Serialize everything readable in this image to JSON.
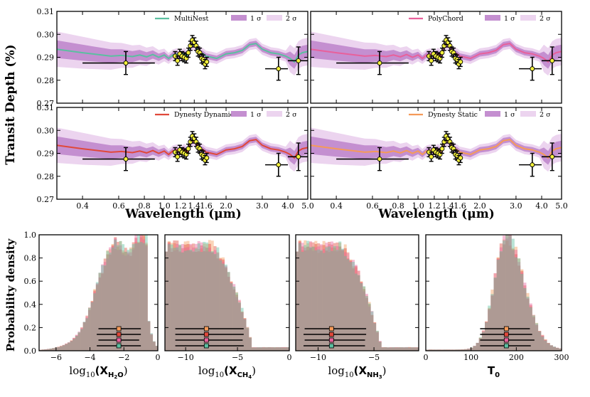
{
  "ylabel_top": "Transit Depth (%)",
  "xlabel_top": "Wavelength (μm)",
  "ylabel_bottom": "Probability density",
  "legend_sigma1": "1 σ",
  "legend_sigma2": "2 σ",
  "colors": {
    "multinest": "#5bbfa0",
    "polychord": "#e8609b",
    "dynesty_dynamic": "#e0483a",
    "dynesty_static": "#f59a58",
    "band1": "#c48fd0",
    "band2": "#ecd4ef",
    "data_fill": "#f3f03a",
    "hist_overlap": "#b49a8c"
  },
  "chart_data": [
    {
      "type": "line",
      "panel": "top-left",
      "sampler": "MultiNest",
      "color_key": "multinest",
      "xscale": "log",
      "xlim": [
        0.3,
        5.0
      ],
      "ylim": [
        0.27,
        0.31
      ],
      "xticks": [
        0.4,
        0.6,
        0.8,
        1.0,
        1.2,
        1.4,
        1.6,
        2.0,
        3.0,
        4.0,
        5.0
      ],
      "xtick_labels": [
        "0.4",
        "0.6",
        "0.8",
        "1.0",
        "1.2",
        "1.4",
        "1.6",
        "2.0",
        "3.0",
        "4.0",
        "5.0"
      ],
      "yticks": [
        0.27,
        0.28,
        0.29,
        0.3,
        0.31
      ],
      "ytick_labels": [
        "0.27",
        "0.28",
        "0.29",
        "0.30",
        "0.31"
      ],
      "legend": [
        "MultiNest",
        "1 σ",
        "2 σ"
      ],
      "show_xticklabels": false,
      "show_yticklabels": true
    },
    {
      "type": "line",
      "panel": "top-right",
      "sampler": "PolyChord",
      "color_key": "polychord",
      "xscale": "log",
      "xlim": [
        0.3,
        5.0
      ],
      "ylim": [
        0.27,
        0.31
      ],
      "xticks": [
        0.4,
        0.6,
        0.8,
        1.0,
        1.2,
        1.4,
        1.6,
        2.0,
        3.0,
        4.0,
        5.0
      ],
      "xtick_labels": [
        "0.4",
        "0.6",
        "0.8",
        "1.0",
        "1.2",
        "1.4",
        "1.6",
        "2.0",
        "3.0",
        "4.0",
        "5.0"
      ],
      "legend": [
        "PolyChord",
        "1 σ",
        "2 σ"
      ],
      "show_xticklabels": false,
      "show_yticklabels": false
    },
    {
      "type": "line",
      "panel": "mid-left",
      "sampler": "Dynesty Dynamic",
      "color_key": "dynesty_dynamic",
      "xscale": "log",
      "xlim": [
        0.3,
        5.0
      ],
      "ylim": [
        0.27,
        0.31
      ],
      "xticks": [
        0.4,
        0.6,
        0.8,
        1.0,
        1.2,
        1.4,
        1.6,
        2.0,
        3.0,
        4.0,
        5.0
      ],
      "xtick_labels": [
        "0.4",
        "0.6",
        "0.8",
        "1.0",
        "1.2",
        "1.4",
        "1.6",
        "2.0",
        "3.0",
        "4.0",
        "5.0"
      ],
      "yticks": [
        0.27,
        0.28,
        0.29,
        0.3,
        0.31
      ],
      "ytick_labels": [
        "0.27",
        "0.28",
        "0.29",
        "0.30",
        "0.31"
      ],
      "legend": [
        "Dynesty Dynamic",
        "1 σ",
        "2 σ"
      ],
      "show_xticklabels": true,
      "show_yticklabels": true
    },
    {
      "type": "line",
      "panel": "mid-right",
      "sampler": "Dynesty Static",
      "color_key": "dynesty_static",
      "xscale": "log",
      "xlim": [
        0.3,
        5.0
      ],
      "ylim": [
        0.27,
        0.31
      ],
      "xticks": [
        0.4,
        0.6,
        0.8,
        1.0,
        1.2,
        1.4,
        1.6,
        2.0,
        3.0,
        4.0,
        5.0
      ],
      "xtick_labels": [
        "0.4",
        "0.6",
        "0.8",
        "1.0",
        "1.2",
        "1.4",
        "1.6",
        "2.0",
        "3.0",
        "4.0",
        "5.0"
      ],
      "legend": [
        "Dynesty Static",
        "1 σ",
        "2 σ"
      ],
      "show_xticklabels": true,
      "show_yticklabels": false
    },
    {
      "type": "bar",
      "panel": "hist-1",
      "xlabel": "log10(X_H2O)",
      "xlabel_base": "log",
      "xlabel_sub": "10",
      "xlabel_var": "(X",
      "xlabel_sub2": "H",
      "xlabel_sub2b": "2",
      "xlabel_sub2c": "O",
      "xlabel_end": ")",
      "xlim": [
        -7,
        0
      ],
      "ylim": [
        0,
        1.0
      ],
      "xticks": [
        -6,
        -4,
        -2,
        0
      ],
      "xtick_labels": [
        "−6",
        "−4",
        "−2",
        "0"
      ],
      "yticks": [
        0,
        0.2,
        0.4,
        0.6,
        0.8,
        1.0
      ],
      "ytick_labels": [
        "0.0",
        "0.2",
        "0.4",
        "0.6",
        "0.8",
        "1.0"
      ],
      "dist": {
        "kind": "plateau",
        "lo": -3.7,
        "hi": -0.6,
        "peak": -1.2
      },
      "summary": [
        {
          "sampler": "Dynesty Static",
          "median": -2.3,
          "lo": -3.5,
          "hi": -1.0
        },
        {
          "sampler": "Dynesty Dynamic",
          "median": -2.3,
          "lo": -3.6,
          "hi": -1.0
        },
        {
          "sampler": "PolyChord",
          "median": -2.3,
          "lo": -3.5,
          "hi": -1.1
        },
        {
          "sampler": "MultiNest",
          "median": -2.3,
          "lo": -3.6,
          "hi": -1.0
        }
      ]
    },
    {
      "type": "bar",
      "panel": "hist-2",
      "xlabel": "log10(X_CH4)",
      "xlabel_base": "log",
      "xlabel_sub": "10",
      "xlabel_var": "(X",
      "xlabel_sub2": "CH",
      "xlabel_sub2b": "4",
      "xlabel_sub2c": "",
      "xlabel_end": ")",
      "xlim": [
        -12,
        0
      ],
      "ylim": [
        0,
        1.0
      ],
      "xticks": [
        -10,
        -5,
        0
      ],
      "xtick_labels": [
        "−10",
        "−5",
        "0"
      ],
      "dist": {
        "kind": "decline",
        "lo": -12,
        "hi": -3.5,
        "peak": -9
      },
      "summary": [
        {
          "sampler": "Dynesty Static",
          "median": -8.0,
          "lo": -11.0,
          "hi": -4.4
        },
        {
          "sampler": "Dynesty Dynamic",
          "median": -8.0,
          "lo": -11.0,
          "hi": -4.4
        },
        {
          "sampler": "PolyChord",
          "median": -8.0,
          "lo": -11.0,
          "hi": -4.5
        },
        {
          "sampler": "MultiNest",
          "median": -8.0,
          "lo": -11.0,
          "hi": -4.4
        }
      ]
    },
    {
      "type": "bar",
      "panel": "hist-3",
      "xlabel": "log10(X_NH3)",
      "xlabel_base": "log",
      "xlabel_sub": "10",
      "xlabel_var": "(X",
      "xlabel_sub2": "NH",
      "xlabel_sub2b": "3",
      "xlabel_sub2c": "",
      "xlabel_end": ")",
      "xlim": [
        -12,
        -1
      ],
      "ylim": [
        0,
        1.0
      ],
      "xticks": [
        -10,
        -5
      ],
      "xtick_labels": [
        "−10",
        "−5"
      ],
      "dist": {
        "kind": "decline",
        "lo": -12,
        "hi": -4.3,
        "peak": -10
      },
      "summary": [
        {
          "sampler": "Dynesty Static",
          "median": -8.8,
          "lo": -11.2,
          "hi": -5.7
        },
        {
          "sampler": "Dynesty Dynamic",
          "median": -8.8,
          "lo": -11.3,
          "hi": -5.7
        },
        {
          "sampler": "PolyChord",
          "median": -8.8,
          "lo": -11.2,
          "hi": -5.8
        },
        {
          "sampler": "MultiNest",
          "median": -8.8,
          "lo": -11.3,
          "hi": -5.8
        }
      ]
    },
    {
      "type": "bar",
      "panel": "hist-4",
      "xlabel": "T0",
      "xlabel_base": "T",
      "xlabel_sub": "0",
      "xlabel_var": "",
      "xlabel_sub2": "",
      "xlabel_sub2b": "",
      "xlabel_sub2c": "",
      "xlabel_end": "",
      "xlim": [
        0,
        300
      ],
      "ylim": [
        0,
        1.0
      ],
      "xticks": [
        0,
        100,
        200,
        300
      ],
      "xtick_labels": [
        "0",
        "100",
        "200",
        "300"
      ],
      "dist": {
        "kind": "skew",
        "lo": 40,
        "hi": 300,
        "peak": 178
      },
      "summary": [
        {
          "sampler": "Dynesty Static",
          "median": 178,
          "lo": 120,
          "hi": 230
        },
        {
          "sampler": "Dynesty Dynamic",
          "median": 178,
          "lo": 120,
          "hi": 235
        },
        {
          "sampler": "PolyChord",
          "median": 178,
          "lo": 120,
          "hi": 240
        },
        {
          "sampler": "MultiNest",
          "median": 178,
          "lo": 120,
          "hi": 232
        }
      ]
    }
  ],
  "spectrum_data": {
    "points": [
      {
        "x": 0.65,
        "y": 0.2875,
        "xerr_lo": 0.4,
        "xerr_hi": 0.9,
        "yerr": 0.005
      },
      {
        "x": 1.13,
        "y": 0.2905,
        "yerr": 0.002
      },
      {
        "x": 1.16,
        "y": 0.2885,
        "yerr": 0.002
      },
      {
        "x": 1.19,
        "y": 0.2915,
        "yerr": 0.002
      },
      {
        "x": 1.22,
        "y": 0.2905,
        "yerr": 0.002
      },
      {
        "x": 1.25,
        "y": 0.29,
        "yerr": 0.002
      },
      {
        "x": 1.28,
        "y": 0.2895,
        "yerr": 0.002
      },
      {
        "x": 1.31,
        "y": 0.292,
        "yerr": 0.002
      },
      {
        "x": 1.34,
        "y": 0.295,
        "yerr": 0.002
      },
      {
        "x": 1.37,
        "y": 0.2975,
        "yerr": 0.002
      },
      {
        "x": 1.4,
        "y": 0.2965,
        "yerr": 0.002
      },
      {
        "x": 1.43,
        "y": 0.295,
        "yerr": 0.002
      },
      {
        "x": 1.46,
        "y": 0.2925,
        "yerr": 0.002
      },
      {
        "x": 1.49,
        "y": 0.292,
        "yerr": 0.002
      },
      {
        "x": 1.52,
        "y": 0.2895,
        "yerr": 0.002
      },
      {
        "x": 1.55,
        "y": 0.289,
        "yerr": 0.002
      },
      {
        "x": 1.58,
        "y": 0.287,
        "yerr": 0.002
      },
      {
        "x": 1.61,
        "y": 0.288,
        "yerr": 0.002
      },
      {
        "x": 3.6,
        "y": 0.285,
        "xerr_lo": 3.1,
        "xerr_hi": 4.0,
        "yerr": 0.005
      },
      {
        "x": 4.5,
        "y": 0.2885,
        "xerr_lo": 4.0,
        "xerr_hi": 5.0,
        "yerr": 0.006
      }
    ],
    "model": [
      [
        0.3,
        0.2935
      ],
      [
        0.4,
        0.292
      ],
      [
        0.55,
        0.2905
      ],
      [
        0.62,
        0.2908
      ],
      [
        0.7,
        0.2903
      ],
      [
        0.76,
        0.291
      ],
      [
        0.82,
        0.2902
      ],
      [
        0.88,
        0.2912
      ],
      [
        0.94,
        0.29
      ],
      [
        1.0,
        0.291
      ],
      [
        1.05,
        0.2895
      ],
      [
        1.1,
        0.291
      ],
      [
        1.15,
        0.2915
      ],
      [
        1.2,
        0.2905
      ],
      [
        1.25,
        0.2918
      ],
      [
        1.3,
        0.2905
      ],
      [
        1.35,
        0.295
      ],
      [
        1.4,
        0.2955
      ],
      [
        1.45,
        0.2935
      ],
      [
        1.5,
        0.292
      ],
      [
        1.55,
        0.2915
      ],
      [
        1.6,
        0.2905
      ],
      [
        1.7,
        0.29
      ],
      [
        1.8,
        0.2895
      ],
      [
        1.9,
        0.2905
      ],
      [
        2.0,
        0.2915
      ],
      [
        2.2,
        0.292
      ],
      [
        2.4,
        0.293
      ],
      [
        2.6,
        0.2955
      ],
      [
        2.8,
        0.296
      ],
      [
        3.0,
        0.2935
      ],
      [
        3.3,
        0.292
      ],
      [
        3.6,
        0.2915
      ],
      [
        3.9,
        0.2905
      ],
      [
        4.1,
        0.2895
      ],
      [
        4.3,
        0.288
      ],
      [
        4.5,
        0.291
      ],
      [
        4.7,
        0.292
      ],
      [
        5.0,
        0.2925
      ]
    ],
    "sigma1": 0.0012,
    "sigma2": 0.0024,
    "sigma_blue_scale": 2.2
  }
}
